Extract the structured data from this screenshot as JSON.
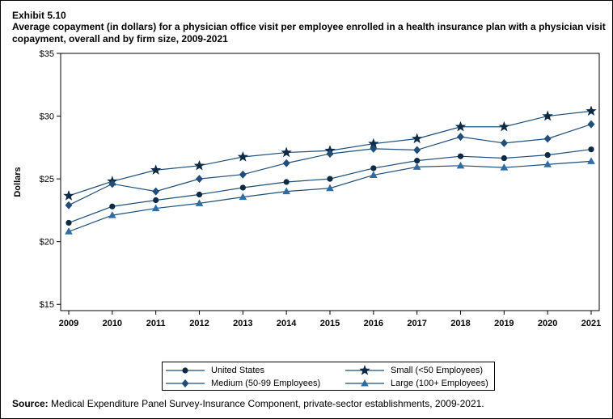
{
  "header": {
    "exhibit": "Exhibit 5.10",
    "title": "Average copayment (in dollars) for a physician office visit per employee enrolled in a health insurance plan with a physician visit copayment, overall and by firm size, 2009-2021"
  },
  "source": {
    "label": "Source:",
    "text": " Medical Expenditure Panel Survey-Insurance Component, private-sector establishments, 2009-2021."
  },
  "colors": {
    "axis": "#000000",
    "line": "#1f4e79",
    "marker_dark": "#0d2a45",
    "marker_mid": "#1f4e79",
    "marker_light": "#2e6da4"
  },
  "chart_data": {
    "type": "line",
    "title": "",
    "xlabel": "",
    "ylabel": "Dollars",
    "x": [
      2009,
      2010,
      2011,
      2012,
      2013,
      2014,
      2015,
      2016,
      2017,
      2018,
      2019,
      2020,
      2021
    ],
    "ylim": [
      14.5,
      35
    ],
    "yticks": [
      15,
      20,
      25,
      30,
      35
    ],
    "ytick_labels": [
      "$15",
      "$20",
      "$25",
      "$30",
      "$35"
    ],
    "grid": false,
    "legend_position": "bottom",
    "series": [
      {
        "name": "United States",
        "marker": "circle",
        "color": "#0d2a45",
        "values": [
          21.5,
          22.8,
          23.3,
          23.75,
          24.3,
          24.75,
          25.0,
          25.85,
          26.45,
          26.8,
          26.65,
          26.9,
          27.35
        ]
      },
      {
        "name": "Small (<50 Employees)",
        "marker": "star",
        "color": "#0d2a45",
        "values": [
          23.65,
          24.8,
          25.7,
          26.05,
          26.75,
          27.1,
          27.25,
          27.8,
          28.2,
          29.15,
          29.15,
          30.0,
          30.4
        ]
      },
      {
        "name": "Medium (50-99 Employees)",
        "marker": "diamond",
        "color": "#1f4e79",
        "values": [
          22.9,
          24.6,
          24.0,
          25.0,
          25.35,
          26.25,
          27.0,
          27.4,
          27.3,
          28.35,
          27.85,
          28.2,
          29.35
        ]
      },
      {
        "name": "Large (100+ Employees)",
        "marker": "triangle",
        "color": "#2e6da4",
        "values": [
          20.8,
          22.1,
          22.65,
          23.05,
          23.55,
          24.0,
          24.25,
          25.3,
          25.95,
          26.05,
          25.9,
          26.15,
          26.4
        ]
      }
    ]
  }
}
